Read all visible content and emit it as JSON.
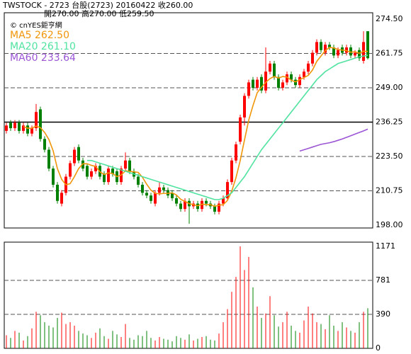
{
  "chart_data": {
    "type": "candlestick",
    "header": [
      "TWSTOCK - 2723 台股(2723) 20160422 收260.00",
      "開270.00 高270.00 低259.50"
    ],
    "source": "© cnYES鉅亨網",
    "up_color": "#ff0000",
    "down_color": "#008000",
    "open": [
      233,
      236,
      234,
      236,
      233,
      235,
      232,
      234,
      241,
      230,
      226,
      219,
      213,
      206,
      210,
      216,
      221,
      227,
      222,
      220,
      216,
      218,
      220,
      217,
      214,
      219,
      218,
      214,
      219,
      222,
      218,
      216,
      213,
      210,
      209,
      206,
      210,
      212,
      211,
      210,
      208,
      206,
      204,
      207,
      205,
      206,
      204,
      207,
      206,
      205,
      203,
      206,
      208,
      214,
      222,
      229,
      238,
      246,
      252,
      249,
      253,
      248,
      255,
      258,
      253,
      249,
      251,
      254,
      252,
      250,
      253,
      255,
      258,
      262,
      266,
      262,
      265,
      264,
      261,
      264,
      262,
      264,
      261,
      263,
      259,
      270
    ],
    "high": [
      236,
      237,
      237,
      237,
      236,
      236,
      235,
      243,
      242,
      231,
      227,
      220,
      214,
      211,
      217,
      222,
      227,
      228,
      223,
      221,
      219,
      221,
      221,
      218,
      220,
      220,
      219,
      220,
      225,
      223,
      219,
      217,
      214,
      211,
      210,
      211,
      214,
      213,
      212,
      211,
      209,
      207,
      208,
      208,
      207,
      207,
      208,
      208,
      207,
      206,
      207,
      209,
      215,
      223,
      229,
      239,
      247,
      252,
      253,
      253,
      254,
      264,
      259,
      259,
      254,
      252,
      255,
      255,
      253,
      254,
      256,
      259,
      263,
      267,
      267,
      266,
      266,
      265,
      264,
      265,
      265,
      265,
      263,
      264,
      270,
      270
    ],
    "low": [
      232,
      233,
      233,
      232,
      232,
      231,
      231,
      233,
      229,
      225,
      218,
      212,
      206,
      205,
      209,
      215,
      220,
      221,
      218,
      215,
      215,
      217,
      215,
      213,
      213,
      216,
      213,
      213,
      218,
      217,
      215,
      212,
      209,
      208,
      206,
      205,
      209,
      210,
      208,
      207,
      205,
      203,
      203,
      198.5,
      204,
      203,
      203,
      205,
      204,
      202,
      202,
      205,
      207,
      213,
      221,
      228,
      235,
      245,
      248,
      248,
      247,
      247,
      254,
      252,
      248,
      248,
      250,
      251,
      249,
      249,
      252,
      254,
      257,
      261,
      262,
      261,
      263,
      260,
      260,
      261,
      261,
      260,
      260,
      259,
      258,
      259.5
    ],
    "close": [
      235,
      234,
      236,
      233,
      235,
      232,
      234,
      240,
      230,
      226,
      219,
      213,
      207,
      210,
      216,
      221,
      226,
      222,
      219,
      216,
      218,
      220,
      216,
      214,
      219,
      217,
      214,
      219,
      222,
      218,
      216,
      213,
      210,
      209,
      207,
      210,
      212,
      211,
      209,
      208,
      206,
      204,
      207,
      205,
      206,
      204,
      207,
      206,
      205,
      203,
      206,
      208,
      214,
      222,
      228,
      238,
      246,
      251,
      249,
      252,
      248,
      255,
      258,
      253,
      249,
      251,
      254,
      252,
      250,
      253,
      255,
      258,
      262,
      266,
      263,
      265,
      264,
      261,
      263,
      262,
      264,
      261,
      262,
      260,
      266,
      260
    ],
    "volume": [
      150,
      120,
      200,
      180,
      90,
      140,
      230,
      420,
      380,
      300,
      260,
      240,
      350,
      410,
      280,
      300,
      260,
      200,
      170,
      150,
      120,
      180,
      230,
      140,
      110,
      200,
      160,
      130,
      280,
      120,
      100,
      150,
      140,
      200,
      120,
      90,
      130,
      110,
      100,
      80,
      140,
      120,
      100,
      160,
      90,
      110,
      130,
      140,
      100,
      90,
      170,
      300,
      450,
      650,
      820,
      1171,
      900,
      1050,
      700,
      480,
      350,
      400,
      600,
      380,
      250,
      300,
      420,
      260,
      200,
      180,
      320,
      480,
      400,
      300,
      280,
      220,
      380,
      260,
      200,
      300,
      240,
      200,
      180,
      300,
      420,
      460
    ],
    "series": [
      {
        "name": "MA5",
        "legend_label": "MA5 262.50",
        "color": "#f0960a",
        "values": [
          null,
          null,
          null,
          null,
          234.6,
          234,
          234,
          234.8,
          234.2,
          232.4,
          229.8,
          225.6,
          219,
          215,
          213,
          213.4,
          216,
          219,
          220.8,
          220.8,
          220.2,
          219.8,
          217.8,
          216.8,
          217.4,
          217.2,
          216,
          216.6,
          218.2,
          218,
          217.8,
          217.6,
          215.8,
          213.2,
          211,
          209.8,
          209.6,
          209.8,
          209.8,
          210,
          209.2,
          207.6,
          206.8,
          206,
          205.6,
          205.2,
          205.8,
          205.6,
          205.6,
          205,
          205.4,
          205.6,
          207.2,
          210.6,
          215.6,
          222,
          229.6,
          237,
          242.4,
          247.2,
          249.2,
          251,
          252.4,
          253.2,
          252.6,
          253.2,
          253,
          251.8,
          251.2,
          252,
          252.8,
          253.6,
          255.6,
          258.8,
          260.8,
          262.8,
          264,
          263.8,
          263.2,
          263,
          262.8,
          262.2,
          262.4,
          261.8,
          262.6,
          262.5
        ]
      },
      {
        "name": "MA20",
        "legend_label": "MA20 261.10",
        "color": "#50e3a0",
        "values": [
          null,
          null,
          null,
          null,
          null,
          null,
          null,
          null,
          null,
          null,
          null,
          null,
          null,
          null,
          null,
          null,
          null,
          null,
          null,
          222,
          222,
          221.5,
          221,
          220.5,
          220,
          219.5,
          219,
          218.5,
          218,
          217.5,
          217,
          216.5,
          216,
          215.5,
          215,
          214.5,
          214,
          213.5,
          213,
          212.5,
          212,
          211.5,
          211,
          210.5,
          210,
          209.5,
          209,
          208.5,
          208,
          207.5,
          207.5,
          208,
          209,
          210,
          212,
          214,
          216,
          218.5,
          221,
          223.5,
          226,
          228,
          230,
          232,
          234,
          236,
          238,
          240,
          242,
          244,
          246,
          248,
          250,
          252,
          253.5,
          255,
          256,
          257,
          258,
          258.5,
          259,
          259.5,
          260,
          260.5,
          260.8,
          261.1
        ]
      },
      {
        "name": "MA60",
        "legend_label": "MA60 233.64",
        "color": "#9b55d5",
        "values": [
          null,
          null,
          null,
          null,
          null,
          null,
          null,
          null,
          null,
          null,
          null,
          null,
          null,
          null,
          null,
          null,
          null,
          null,
          null,
          null,
          null,
          null,
          null,
          null,
          null,
          null,
          null,
          null,
          null,
          null,
          null,
          null,
          null,
          null,
          null,
          null,
          null,
          null,
          null,
          null,
          null,
          null,
          null,
          null,
          null,
          null,
          null,
          null,
          null,
          null,
          null,
          null,
          null,
          null,
          null,
          null,
          null,
          null,
          null,
          null,
          null,
          null,
          null,
          null,
          null,
          null,
          null,
          null,
          null,
          225.5,
          226,
          226.5,
          227,
          227.5,
          228,
          228.3,
          228.6,
          229,
          229.5,
          230,
          230.6,
          231.2,
          231.8,
          232.4,
          233,
          233.64
        ]
      }
    ],
    "ylim": [
      198,
      274.5
    ],
    "yticks": [
      {
        "value": 198,
        "label": "198.00"
      },
      {
        "value": 210.75,
        "label": "210.75"
      },
      {
        "value": 223.5,
        "label": "223.50"
      },
      {
        "value": 236.25,
        "label": "236.25"
      },
      {
        "value": 249,
        "label": "249.00"
      },
      {
        "value": 261.75,
        "label": "261.75"
      },
      {
        "value": 274.5,
        "label": "274.50"
      }
    ],
    "reference_line": 236.25,
    "volume_ylim": [
      0,
      1171
    ],
    "volume_yticks": [
      0,
      390,
      781,
      1171
    ]
  }
}
